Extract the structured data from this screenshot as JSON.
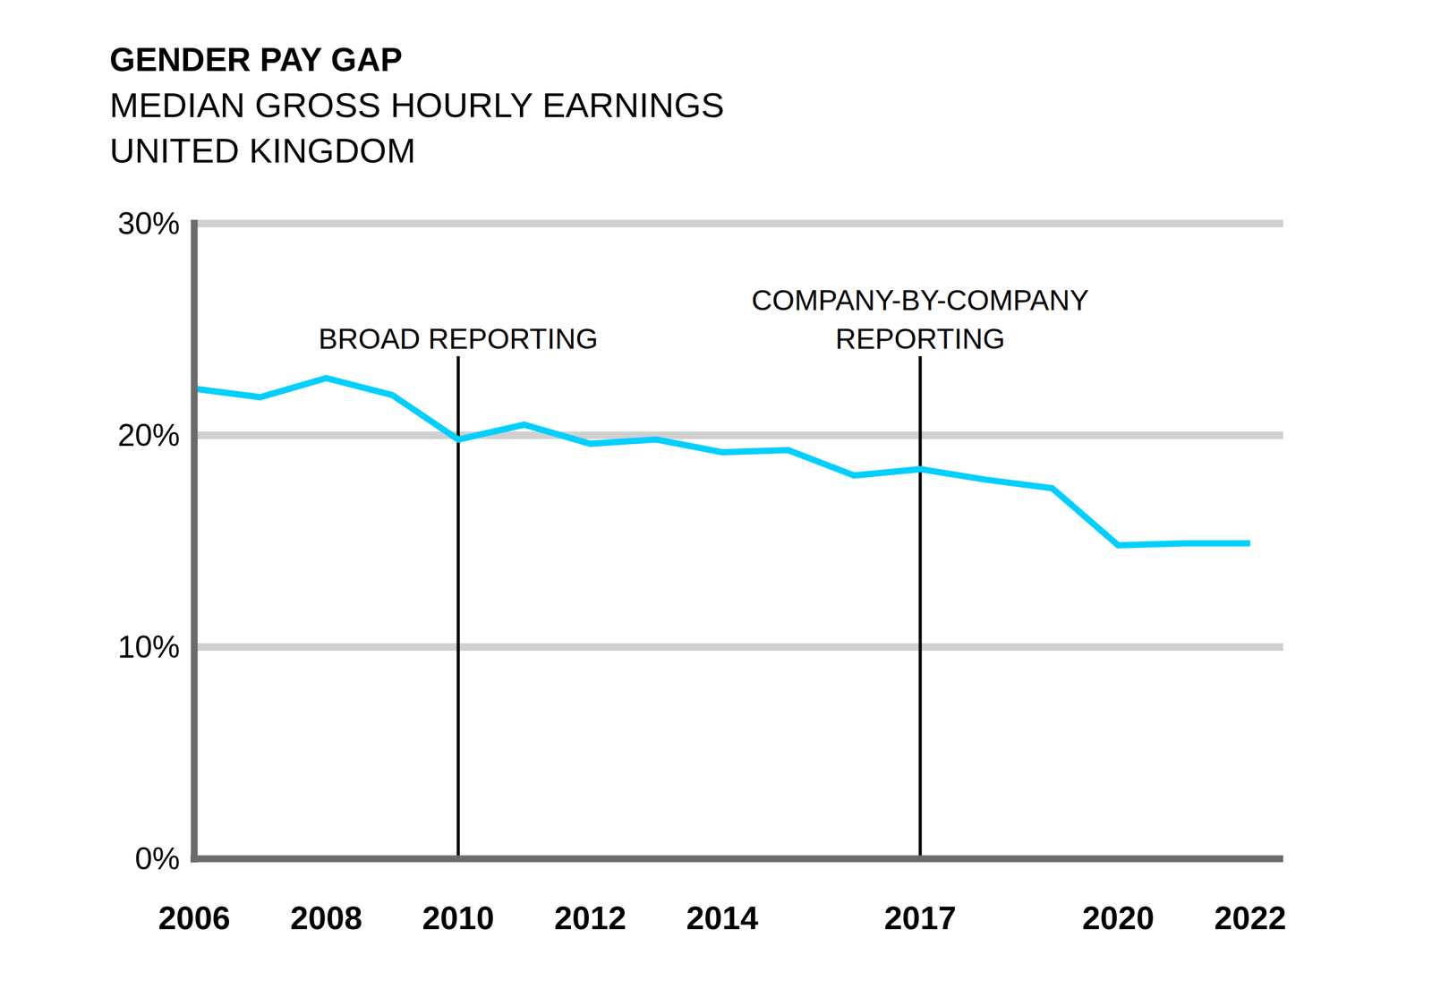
{
  "chart_data": {
    "type": "line",
    "title": "GENDER PAY GAP",
    "subtitle": [
      "MEDIAN GROSS HOURLY EARNINGS",
      "UNITED KINGDOM"
    ],
    "x": [
      2006,
      2007,
      2008,
      2009,
      2010,
      2011,
      2012,
      2013,
      2014,
      2015,
      2016,
      2017,
      2018,
      2019,
      2020,
      2021,
      2022
    ],
    "values": [
      22.2,
      21.8,
      22.7,
      21.9,
      19.8,
      20.5,
      19.6,
      19.8,
      19.2,
      19.3,
      18.1,
      18.4,
      17.9,
      17.5,
      14.8,
      14.9,
      14.9
    ],
    "color": "#00cfff",
    "xlim": [
      2006,
      2022.5
    ],
    "xticks": [
      2006,
      2008,
      2010,
      2012,
      2014,
      2017,
      2020,
      2022
    ],
    "ylim": [
      0,
      30
    ],
    "yticks": [
      {
        "value": 0,
        "label": "0%"
      },
      {
        "value": 10,
        "label": "10%"
      },
      {
        "value": 20,
        "label": "20%"
      },
      {
        "value": 30,
        "label": "30%"
      }
    ],
    "grid": true,
    "annotations": [
      {
        "x": 2010,
        "text": [
          "BROAD REPORTING"
        ]
      },
      {
        "x": 2017,
        "text": [
          "COMPANY-BY-COMPANY",
          "REPORTING"
        ]
      }
    ]
  }
}
